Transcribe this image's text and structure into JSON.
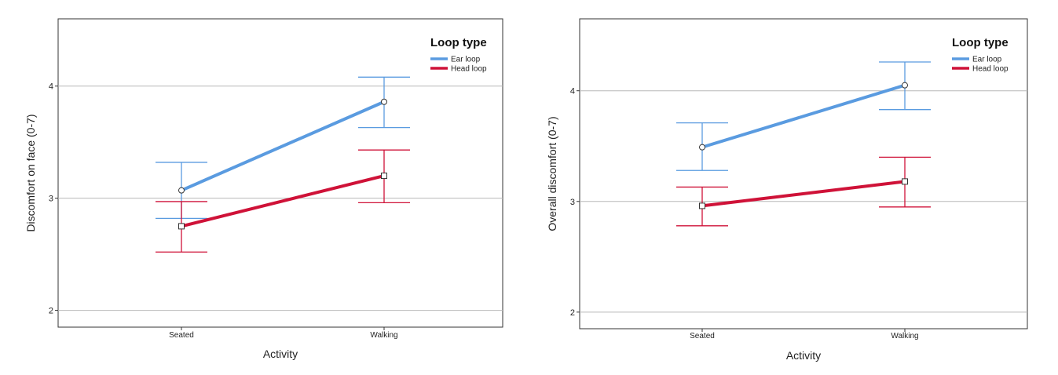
{
  "chart_data": [
    {
      "type": "line",
      "categories": [
        "Seated",
        "Walking"
      ],
      "xlabel": "Activity",
      "ylabel": "Discomfort on face (0-7)",
      "ylim": [
        1.85,
        4.6
      ],
      "yticks": [
        2,
        3,
        4
      ],
      "grid": "horizontal",
      "legend": {
        "title": "Loop type",
        "placement": "top-right"
      },
      "series": [
        {
          "name": "Ear loop",
          "color": "#5a9be0",
          "marker": "circle",
          "values": [
            3.07,
            3.86
          ],
          "ci_low": [
            2.82,
            3.63
          ],
          "ci_high": [
            3.32,
            4.08
          ]
        },
        {
          "name": "Head loop",
          "color": "#cf1238",
          "marker": "square",
          "values": [
            2.75,
            3.2
          ],
          "ci_low": [
            2.52,
            2.96
          ],
          "ci_high": [
            2.97,
            3.43
          ]
        }
      ]
    },
    {
      "type": "line",
      "categories": [
        "Seated",
        "Walking"
      ],
      "xlabel": "Activity",
      "ylabel": "Overall discomfort (0-7)",
      "ylim": [
        1.85,
        4.65
      ],
      "yticks": [
        2,
        3,
        4
      ],
      "grid": "horizontal",
      "legend": {
        "title": "Loop type",
        "placement": "top-right"
      },
      "series": [
        {
          "name": "Ear loop",
          "color": "#5a9be0",
          "marker": "circle",
          "values": [
            3.49,
            4.05
          ],
          "ci_low": [
            3.28,
            3.83
          ],
          "ci_high": [
            3.71,
            4.26
          ]
        },
        {
          "name": "Head loop",
          "color": "#cf1238",
          "marker": "square",
          "values": [
            2.96,
            3.18
          ],
          "ci_low": [
            2.78,
            2.95
          ],
          "ci_high": [
            3.13,
            3.4
          ]
        }
      ]
    }
  ]
}
